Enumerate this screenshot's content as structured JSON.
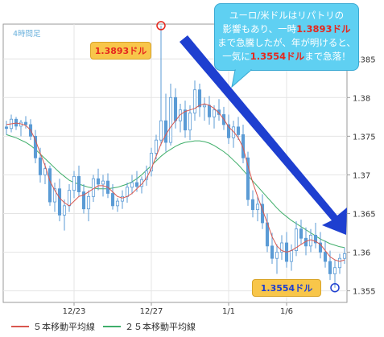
{
  "chart_data": {
    "type": "candlestick",
    "timeframe_label": "4時間足",
    "x_tick_labels": [
      "12/23",
      "12/27",
      "1/1",
      "1/6"
    ],
    "y_ticks": [
      1.385,
      1.38,
      1.375,
      1.37,
      1.365,
      1.36,
      1.355
    ],
    "y_tick_labels": [
      "1.385",
      "1.38",
      "1.375",
      "1.37",
      "1.365",
      "1.36",
      "1.355"
    ],
    "ylim": [
      1.3535,
      1.3895
    ],
    "grid": true,
    "legend_position": "bottom-left",
    "series": [
      {
        "name": "５本移動平均線",
        "color": "#d9574f"
      },
      {
        "name": "２５本移動平均線",
        "color": "#3fae6a"
      }
    ],
    "candles": [
      [
        1.3762,
        1.377,
        1.3752,
        1.376
      ],
      [
        1.376,
        1.3778,
        1.3755,
        1.3772
      ],
      [
        1.3772,
        1.3775,
        1.3758,
        1.3763
      ],
      [
        1.3763,
        1.3771,
        1.375,
        1.3768
      ],
      [
        1.3768,
        1.3776,
        1.376,
        1.3765
      ],
      [
        1.3765,
        1.3772,
        1.3745,
        1.375
      ],
      [
        1.375,
        1.3758,
        1.3715,
        1.3722
      ],
      [
        1.3722,
        1.3735,
        1.369,
        1.37
      ],
      [
        1.37,
        1.3715,
        1.3688,
        1.3708
      ],
      [
        1.3708,
        1.3712,
        1.366,
        1.3665
      ],
      [
        1.3665,
        1.369,
        1.3652,
        1.3682
      ],
      [
        1.3682,
        1.3695,
        1.364,
        1.3648
      ],
      [
        1.3648,
        1.3668,
        1.3628,
        1.366
      ],
      [
        1.366,
        1.3688,
        1.3652,
        1.368
      ],
      [
        1.368,
        1.3705,
        1.367,
        1.3698
      ],
      [
        1.3698,
        1.3712,
        1.3672,
        1.3678
      ],
      [
        1.3678,
        1.3688,
        1.365,
        1.3656
      ],
      [
        1.3656,
        1.368,
        1.364,
        1.3672
      ],
      [
        1.3672,
        1.37,
        1.3665,
        1.3695
      ],
      [
        1.3695,
        1.3708,
        1.368,
        1.3688
      ],
      [
        1.3688,
        1.37,
        1.3672,
        1.3692
      ],
      [
        1.3692,
        1.3702,
        1.367,
        1.3676
      ],
      [
        1.3676,
        1.3688,
        1.3655,
        1.366
      ],
      [
        1.366,
        1.367,
        1.3652,
        1.3666
      ],
      [
        1.3666,
        1.368,
        1.3656,
        1.3672
      ],
      [
        1.3672,
        1.369,
        1.3664,
        1.3684
      ],
      [
        1.3684,
        1.37,
        1.3675,
        1.369
      ],
      [
        1.369,
        1.3705,
        1.3678,
        1.3685
      ],
      [
        1.3685,
        1.3698,
        1.3676,
        1.3694
      ],
      [
        1.3694,
        1.3712,
        1.3686,
        1.3705
      ],
      [
        1.3705,
        1.3735,
        1.3698,
        1.3728
      ],
      [
        1.3728,
        1.3752,
        1.372,
        1.3745
      ],
      [
        1.3745,
        1.3893,
        1.3738,
        1.377
      ],
      [
        1.377,
        1.3805,
        1.373,
        1.3742
      ],
      [
        1.3742,
        1.3818,
        1.3738,
        1.38
      ],
      [
        1.38,
        1.3812,
        1.376,
        1.377
      ],
      [
        1.377,
        1.3792,
        1.3755,
        1.3784
      ],
      [
        1.3784,
        1.3796,
        1.3748,
        1.3758
      ],
      [
        1.3758,
        1.379,
        1.3745,
        1.378
      ],
      [
        1.378,
        1.3822,
        1.377,
        1.381
      ],
      [
        1.381,
        1.3818,
        1.3775,
        1.3788
      ],
      [
        1.3788,
        1.38,
        1.377,
        1.379
      ],
      [
        1.379,
        1.3802,
        1.3765,
        1.3775
      ],
      [
        1.3775,
        1.379,
        1.376,
        1.3784
      ],
      [
        1.3784,
        1.3798,
        1.377,
        1.3778
      ],
      [
        1.3778,
        1.3788,
        1.3758,
        1.3765
      ],
      [
        1.3765,
        1.3778,
        1.374,
        1.3748
      ],
      [
        1.3748,
        1.377,
        1.3735,
        1.3762
      ],
      [
        1.3762,
        1.3775,
        1.3745,
        1.3752
      ],
      [
        1.3752,
        1.3765,
        1.3715,
        1.3722
      ],
      [
        1.3722,
        1.373,
        1.366,
        1.3668
      ],
      [
        1.3668,
        1.368,
        1.3645,
        1.3655
      ],
      [
        1.3655,
        1.3672,
        1.364,
        1.3662
      ],
      [
        1.3662,
        1.3675,
        1.363,
        1.3638
      ],
      [
        1.3638,
        1.365,
        1.36,
        1.3608
      ],
      [
        1.3608,
        1.3625,
        1.3585,
        1.3592
      ],
      [
        1.3592,
        1.361,
        1.3572,
        1.36
      ],
      [
        1.36,
        1.3622,
        1.359,
        1.3612
      ],
      [
        1.3612,
        1.3626,
        1.358,
        1.3588
      ],
      [
        1.3588,
        1.361,
        1.3576,
        1.3602
      ],
      [
        1.3602,
        1.364,
        1.3595,
        1.363
      ],
      [
        1.363,
        1.3642,
        1.361,
        1.3618
      ],
      [
        1.3618,
        1.3632,
        1.3596,
        1.3608
      ],
      [
        1.3608,
        1.363,
        1.36,
        1.3622
      ],
      [
        1.3622,
        1.3638,
        1.3605,
        1.3612
      ],
      [
        1.3612,
        1.3626,
        1.3592,
        1.36
      ],
      [
        1.36,
        1.3615,
        1.358,
        1.3588
      ],
      [
        1.3588,
        1.3602,
        1.3564,
        1.3572
      ],
      [
        1.3572,
        1.359,
        1.3554,
        1.358
      ],
      [
        1.358,
        1.3598,
        1.3572,
        1.3592
      ],
      [
        1.3592,
        1.3606,
        1.3585,
        1.3598
      ]
    ],
    "ma5": [
      1.3765,
      1.3766,
      1.3767,
      1.3766,
      1.3764,
      1.3758,
      1.3745,
      1.3728,
      1.3712,
      1.3692,
      1.368,
      1.367,
      1.3664,
      1.366,
      1.3666,
      1.3672,
      1.3674,
      1.3678,
      1.3682,
      1.3686,
      1.3686,
      1.3684,
      1.3678,
      1.3672,
      1.367,
      1.3672,
      1.3676,
      1.3682,
      1.3688,
      1.3696,
      1.3708,
      1.3724,
      1.374,
      1.3752,
      1.3762,
      1.377,
      1.3778,
      1.3782,
      1.3784,
      1.3786,
      1.379,
      1.3792,
      1.379,
      1.3786,
      1.378,
      1.3772,
      1.3762,
      1.3756,
      1.3748,
      1.3735,
      1.3712,
      1.369,
      1.3672,
      1.3655,
      1.3638,
      1.362,
      1.3608,
      1.3602,
      1.36,
      1.3602,
      1.3606,
      1.361,
      1.3614,
      1.3616,
      1.3614,
      1.361,
      1.3602,
      1.3594,
      1.359,
      1.3588,
      1.359
    ],
    "ma25": [
      1.3752,
      1.375,
      1.3748,
      1.3745,
      1.3742,
      1.3738,
      1.3733,
      1.3727,
      1.3721,
      1.3715,
      1.3709,
      1.3703,
      1.3698,
      1.3693,
      1.369,
      1.3688,
      1.3686,
      1.3684,
      1.3683,
      1.3682,
      1.3682,
      1.3682,
      1.3683,
      1.3684,
      1.3686,
      1.3688,
      1.3691,
      1.3695,
      1.37,
      1.3706,
      1.3712,
      1.3718,
      1.3724,
      1.3729,
      1.3733,
      1.3737,
      1.374,
      1.3742,
      1.3743,
      1.3744,
      1.3744,
      1.3743,
      1.3741,
      1.3738,
      1.3734,
      1.373,
      1.3725,
      1.3719,
      1.3713,
      1.3706,
      1.3699,
      1.3692,
      1.3685,
      1.3678,
      1.3671,
      1.3664,
      1.3657,
      1.3651,
      1.3646,
      1.3641,
      1.3637,
      1.3633,
      1.3629,
      1.3625,
      1.3621,
      1.3617,
      1.3614,
      1.3611,
      1.3609,
      1.3607,
      1.3606
    ],
    "annotations": {
      "high_label": "1.3893ドル",
      "low_label": "1.3554ドル",
      "high_value": 1.3893,
      "low_value": 1.3554
    }
  },
  "bubble": {
    "line1": "ユーロ/米ドルはリパトリの",
    "line2_a": "影響もあり、一時",
    "line2_b": "1.3893ドル",
    "line3": "まで急騰したが、年が明けると、",
    "line4_a": "一気に",
    "line4_b": "1.3554ドル",
    "line4_c": "まで急落！"
  },
  "colors": {
    "candle": "#5b9bd5",
    "ma5": "#d9574f",
    "ma25": "#3fae6a",
    "arrow": "#1e3fd0",
    "bubble": "#5fd0f2",
    "label_box": "#f8c64a",
    "highlight_text": "#e6281e"
  }
}
